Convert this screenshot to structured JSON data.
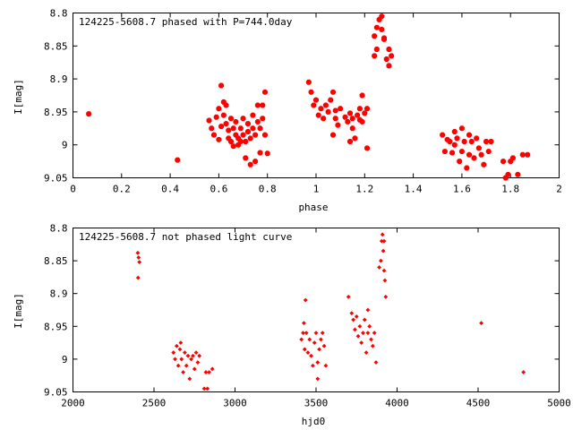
{
  "chart_data": [
    {
      "type": "scatter",
      "title": "124225-5608.7 phased with P=744.0day",
      "xlabel": "phase",
      "ylabel": "I[mag]",
      "xlim": [
        0,
        2
      ],
      "ylim": [
        9.05,
        8.8
      ],
      "y_inverted": true,
      "x_ticks": [
        0,
        0.2,
        0.4,
        0.6,
        0.8,
        1,
        1.2,
        1.4,
        1.6,
        1.8,
        2
      ],
      "x_tick_labels": [
        "0",
        "0.2",
        "0.4",
        "0.6",
        "0.8",
        "1",
        "1.2",
        "1.4",
        "1.6",
        "1.8",
        "2"
      ],
      "y_ticks": [
        8.8,
        8.85,
        8.9,
        8.95,
        9.0,
        9.05
      ],
      "y_tick_labels": [
        "8.8",
        "8.85",
        "8.9",
        "8.95",
        "9",
        "9.05"
      ],
      "grid": false,
      "marker_color": "#ff0000",
      "marker": "star",
      "series": [
        {
          "name": "",
          "points": [
            [
              0.065,
              8.953
            ],
            [
              0.43,
              9.023
            ],
            [
              0.56,
              8.963
            ],
            [
              0.57,
              8.975
            ],
            [
              0.58,
              8.985
            ],
            [
              0.59,
              8.958
            ],
            [
              0.6,
              8.992
            ],
            [
              0.6,
              8.945
            ],
            [
              0.61,
              8.972
            ],
            [
              0.61,
              8.91
            ],
            [
              0.62,
              8.955
            ],
            [
              0.62,
              8.935
            ],
            [
              0.63,
              8.968
            ],
            [
              0.63,
              8.94
            ],
            [
              0.64,
              8.978
            ],
            [
              0.64,
              8.99
            ],
            [
              0.65,
              8.96
            ],
            [
              0.65,
              8.995
            ],
            [
              0.66,
              8.975
            ],
            [
              0.66,
              9.002
            ],
            [
              0.67,
              8.985
            ],
            [
              0.67,
              8.965
            ],
            [
              0.68,
              8.99
            ],
            [
              0.68,
              9.0
            ],
            [
              0.69,
              8.995
            ],
            [
              0.69,
              8.975
            ],
            [
              0.7,
              8.985
            ],
            [
              0.7,
              8.96
            ],
            [
              0.71,
              8.995
            ],
            [
              0.71,
              9.02
            ],
            [
              0.72,
              8.98
            ],
            [
              0.72,
              8.968
            ],
            [
              0.73,
              8.99
            ],
            [
              0.73,
              9.03
            ],
            [
              0.74,
              8.975
            ],
            [
              0.74,
              8.955
            ],
            [
              0.75,
              8.985
            ],
            [
              0.75,
              9.025
            ],
            [
              0.76,
              8.965
            ],
            [
              0.76,
              8.94
            ],
            [
              0.77,
              8.975
            ],
            [
              0.77,
              9.012
            ],
            [
              0.78,
              8.96
            ],
            [
              0.78,
              8.94
            ],
            [
              0.79,
              8.985
            ],
            [
              0.79,
              8.92
            ],
            [
              0.8,
              9.013
            ],
            [
              0.97,
              8.905
            ],
            [
              0.98,
              8.92
            ],
            [
              0.99,
              8.94
            ],
            [
              1.0,
              8.932
            ],
            [
              1.01,
              8.955
            ],
            [
              1.02,
              8.945
            ],
            [
              1.03,
              8.96
            ],
            [
              1.04,
              8.94
            ],
            [
              1.05,
              8.95
            ],
            [
              1.06,
              8.932
            ],
            [
              1.07,
              8.92
            ],
            [
              1.07,
              8.985
            ],
            [
              1.08,
              8.948
            ],
            [
              1.08,
              8.96
            ],
            [
              1.09,
              8.97
            ],
            [
              1.1,
              8.945
            ],
            [
              1.12,
              8.958
            ],
            [
              1.13,
              8.965
            ],
            [
              1.14,
              8.952
            ],
            [
              1.14,
              8.995
            ],
            [
              1.15,
              8.96
            ],
            [
              1.15,
              8.975
            ],
            [
              1.16,
              8.99
            ],
            [
              1.17,
              8.955
            ],
            [
              1.18,
              8.962
            ],
            [
              1.18,
              8.945
            ],
            [
              1.19,
              8.965
            ],
            [
              1.19,
              8.925
            ],
            [
              1.2,
              8.952
            ],
            [
              1.21,
              8.945
            ],
            [
              1.21,
              9.005
            ],
            [
              1.24,
              8.835
            ],
            [
              1.24,
              8.865
            ],
            [
              1.25,
              8.855
            ],
            [
              1.25,
              8.822
            ],
            [
              1.26,
              8.81
            ],
            [
              1.27,
              8.805
            ],
            [
              1.27,
              8.825
            ],
            [
              1.28,
              8.838
            ],
            [
              1.28,
              8.84
            ],
            [
              1.29,
              8.87
            ],
            [
              1.3,
              8.855
            ],
            [
              1.3,
              8.88
            ],
            [
              1.31,
              8.865
            ],
            [
              1.52,
              8.985
            ],
            [
              1.53,
              9.01
            ],
            [
              1.54,
              8.992
            ],
            [
              1.55,
              8.995
            ],
            [
              1.56,
              9.012
            ],
            [
              1.57,
              8.98
            ],
            [
              1.57,
              9.0
            ],
            [
              1.58,
              8.99
            ],
            [
              1.59,
              9.025
            ],
            [
              1.6,
              8.975
            ],
            [
              1.6,
              9.01
            ],
            [
              1.61,
              8.995
            ],
            [
              1.62,
              9.035
            ],
            [
              1.63,
              8.985
            ],
            [
              1.63,
              9.015
            ],
            [
              1.64,
              8.995
            ],
            [
              1.65,
              9.02
            ],
            [
              1.66,
              8.99
            ],
            [
              1.67,
              9.005
            ],
            [
              1.68,
              9.015
            ],
            [
              1.69,
              9.03
            ],
            [
              1.7,
              8.995
            ],
            [
              1.71,
              9.01
            ],
            [
              1.72,
              8.995
            ],
            [
              1.77,
              9.025
            ],
            [
              1.78,
              9.05
            ],
            [
              1.79,
              9.045
            ],
            [
              1.8,
              9.025
            ],
            [
              1.81,
              9.02
            ],
            [
              1.83,
              9.045
            ],
            [
              1.85,
              9.015
            ],
            [
              1.87,
              9.015
            ]
          ]
        }
      ]
    },
    {
      "type": "scatter",
      "title": "124225-5608.7 not phased light curve",
      "xlabel": "hjd0",
      "ylabel": "I[mag]",
      "xlim": [
        2000,
        5000
      ],
      "ylim": [
        9.05,
        8.8
      ],
      "y_inverted": true,
      "x_ticks": [
        2000,
        2500,
        3000,
        3500,
        4000,
        4500,
        5000
      ],
      "x_tick_labels": [
        "2000",
        "2500",
        "3000",
        "3500",
        "4000",
        "4500",
        "5000"
      ],
      "y_ticks": [
        8.8,
        8.85,
        8.9,
        8.95,
        9.0,
        9.05
      ],
      "y_tick_labels": [
        "8.8",
        "8.85",
        "8.9",
        "8.95",
        "9",
        "9.05"
      ],
      "grid": false,
      "marker_color": "#ff0000",
      "marker": "diamond",
      "series": [
        {
          "name": "",
          "points": [
            [
              2400,
              8.838
            ],
            [
              2405,
              8.845
            ],
            [
              2410,
              8.852
            ],
            [
              2402,
              8.876
            ],
            [
              2620,
              8.99
            ],
            [
              2630,
              9.0
            ],
            [
              2640,
              8.98
            ],
            [
              2650,
              9.01
            ],
            [
              2660,
              8.985
            ],
            [
              2665,
              8.975
            ],
            [
              2670,
              9.0
            ],
            [
              2680,
              9.02
            ],
            [
              2690,
              8.99
            ],
            [
              2700,
              9.01
            ],
            [
              2710,
              8.995
            ],
            [
              2720,
              9.03
            ],
            [
              2730,
              9.0
            ],
            [
              2740,
              8.995
            ],
            [
              2750,
              9.015
            ],
            [
              2760,
              8.99
            ],
            [
              2770,
              9.005
            ],
            [
              2780,
              8.995
            ],
            [
              2810,
              9.045
            ],
            [
              2820,
              9.02
            ],
            [
              2830,
              9.045
            ],
            [
              2840,
              9.02
            ],
            [
              2860,
              9.015
            ],
            [
              3410,
              8.97
            ],
            [
              3420,
              8.96
            ],
            [
              3425,
              8.945
            ],
            [
              3430,
              8.985
            ],
            [
              3440,
              8.96
            ],
            [
              3450,
              8.99
            ],
            [
              3460,
              8.97
            ],
            [
              3470,
              8.995
            ],
            [
              3480,
              9.01
            ],
            [
              3490,
              8.975
            ],
            [
              3500,
              8.96
            ],
            [
              3510,
              9.005
            ],
            [
              3520,
              8.985
            ],
            [
              3530,
              8.97
            ],
            [
              3540,
              8.96
            ],
            [
              3550,
              8.98
            ],
            [
              3560,
              9.01
            ],
            [
              3435,
              8.91
            ],
            [
              3510,
              9.03
            ],
            [
              3700,
              8.905
            ],
            [
              3720,
              8.93
            ],
            [
              3730,
              8.94
            ],
            [
              3740,
              8.955
            ],
            [
              3750,
              8.935
            ],
            [
              3760,
              8.965
            ],
            [
              3770,
              8.95
            ],
            [
              3780,
              8.975
            ],
            [
              3790,
              8.96
            ],
            [
              3800,
              8.94
            ],
            [
              3810,
              8.99
            ],
            [
              3820,
              8.96
            ],
            [
              3830,
              8.95
            ],
            [
              3840,
              8.97
            ],
            [
              3850,
              8.98
            ],
            [
              3860,
              8.96
            ],
            [
              3870,
              9.005
            ],
            [
              3820,
              8.925
            ],
            [
              3890,
              8.86
            ],
            [
              3900,
              8.85
            ],
            [
              3905,
              8.82
            ],
            [
              3910,
              8.81
            ],
            [
              3915,
              8.835
            ],
            [
              3920,
              8.865
            ],
            [
              3925,
              8.88
            ],
            [
              3930,
              8.905
            ],
            [
              3920,
              8.82
            ],
            [
              4520,
              8.945
            ],
            [
              4780,
              9.02
            ]
          ]
        }
      ]
    }
  ]
}
